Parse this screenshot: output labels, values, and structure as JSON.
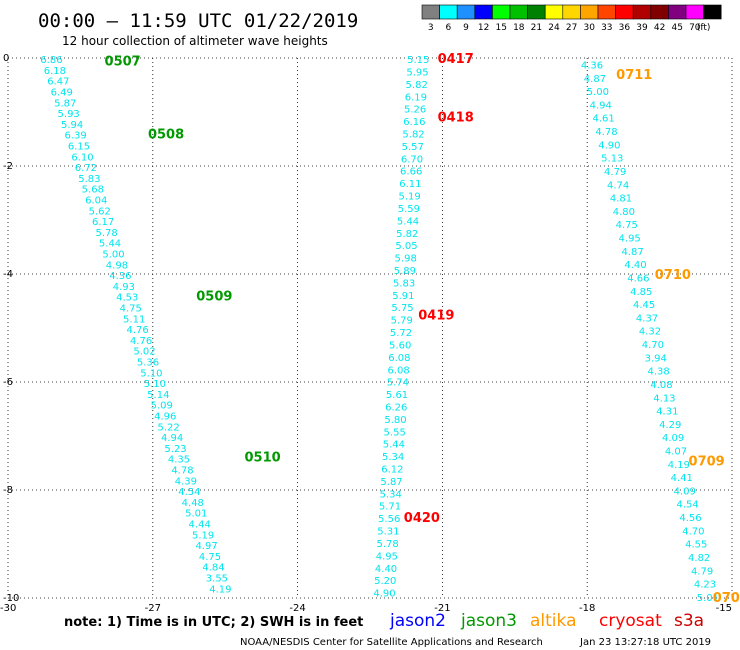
{
  "header": {
    "title": "00:00 – 11:59 UTC 01/22/2019",
    "subtitle": "12 hour collection of altimeter wave heights"
  },
  "colorbar": {
    "unit_label": "(ft)",
    "bins": [
      {
        "label": "3",
        "color": "#808080"
      },
      {
        "label": "6",
        "color": "#00ffff"
      },
      {
        "label": "9",
        "color": "#1e90ff"
      },
      {
        "label": "12",
        "color": "#0000ff"
      },
      {
        "label": "15",
        "color": "#00ff00"
      },
      {
        "label": "18",
        "color": "#00c000"
      },
      {
        "label": "21",
        "color": "#008000"
      },
      {
        "label": "24",
        "color": "#ffff00"
      },
      {
        "label": "27",
        "color": "#ffd700"
      },
      {
        "label": "30",
        "color": "#ffa500"
      },
      {
        "label": "33",
        "color": "#ff4500"
      },
      {
        "label": "36",
        "color": "#ff0000"
      },
      {
        "label": "39",
        "color": "#b00000"
      },
      {
        "label": "42",
        "color": "#800000"
      },
      {
        "label": "45",
        "color": "#800080"
      },
      {
        "label": "70",
        "color": "#ff00ff"
      },
      {
        "label": "",
        "color": "#000000"
      }
    ]
  },
  "footer": {
    "note": "note: 1) Time is in UTC; 2) SWH is in feet",
    "credit": "NOAA/NESDIS Center for Satellite Applications and Research",
    "timestamp": "Jan 23 13:27:18 UTC 2019",
    "satellites": [
      {
        "name": "jason2",
        "color": "#0000ff"
      },
      {
        "name": "jason3",
        "color": "#009900"
      },
      {
        "name": "altika",
        "color": "#ff9900"
      },
      {
        "name": "cryosat",
        "color": "#ff0000"
      },
      {
        "name": "s3a",
        "color": "#cc0000"
      }
    ]
  },
  "chart_data": {
    "type": "scatter",
    "xlim": [
      -30,
      -15
    ],
    "ylim": [
      -10,
      0
    ],
    "x_ticks": [
      -30,
      -27,
      -24,
      -21,
      -18,
      -15
    ],
    "y_ticks": [
      0,
      -2,
      -4,
      -6,
      -8,
      -10
    ],
    "grid": true,
    "value_color": "#00e5ee",
    "tracks": [
      {
        "start": [
          -29.1,
          -0.02
        ],
        "end": [
          -25.6,
          -9.82
        ],
        "values": [
          "6.86",
          "6.18",
          "6.47",
          "6.49",
          "5.87",
          "5.93",
          "5.94",
          "6.39",
          "6.15",
          "6.10",
          "6.72",
          "5.83",
          "5.68",
          "6.04",
          "5.62",
          "6.17",
          "5.78",
          "5.44",
          "5.00",
          "4.98",
          "4.36",
          "4.93",
          "4.53",
          "4.75",
          "5.11",
          "4.76",
          "4.76",
          "5.02",
          "5.36",
          "5.10",
          "5.10",
          "5.14",
          "5.09",
          "4.96",
          "5.22",
          "4.94",
          "5.23",
          "4.35",
          "4.78",
          "4.39",
          "4.54",
          "4.48",
          "5.01",
          "4.44",
          "5.19",
          "4.97",
          "4.75",
          "4.84",
          "3.55",
          "4.19"
        ],
        "time_labels": [
          {
            "text": "0507",
            "x": -28.0,
            "y": -0.05,
            "color": "#009900"
          },
          {
            "text": "0508",
            "x": -27.1,
            "y": -1.4,
            "color": "#009900"
          },
          {
            "text": "0509",
            "x": -26.1,
            "y": -4.4,
            "color": "#009900"
          },
          {
            "text": "0510",
            "x": -25.1,
            "y": -7.38,
            "color": "#009900"
          }
        ]
      },
      {
        "start": [
          -21.5,
          -0.02
        ],
        "end": [
          -22.2,
          -9.9
        ],
        "values": [
          "5.15",
          "5.95",
          "5.82",
          "6.19",
          "5.26",
          "6.16",
          "5.82",
          "5.57",
          "6.70",
          "6.66",
          "6.11",
          "5.19",
          "5.59",
          "5.44",
          "5.82",
          "5.05",
          "5.98",
          "5.89",
          "5.83",
          "5.91",
          "5.75",
          "5.79",
          "5.72",
          "5.60",
          "6.08",
          "6.08",
          "5.74",
          "5.61",
          "6.26",
          "5.80",
          "5.55",
          "5.44",
          "5.34",
          "6.12",
          "5.87",
          "5.34",
          "5.71",
          "5.56",
          "5.31",
          "5.78",
          "4.95",
          "4.40",
          "5.20",
          "4.90"
        ],
        "time_labels": [
          {
            "text": "0417",
            "x": -21.1,
            "y": 0.0,
            "color": "#ff0000"
          },
          {
            "text": "0418",
            "x": -21.1,
            "y": -1.08,
            "color": "#ff0000"
          },
          {
            "text": "0419",
            "x": -21.5,
            "y": -4.75,
            "color": "#ff0000"
          },
          {
            "text": "0420",
            "x": -21.8,
            "y": -8.5,
            "color": "#ff0000"
          }
        ]
      },
      {
        "start": [
          -17.9,
          -0.12
        ],
        "end": [
          -15.5,
          -9.98
        ],
        "values": [
          "4.36",
          "4.87",
          "5.00",
          "4.94",
          "4.61",
          "4.78",
          "4.90",
          "5.13",
          "4.79",
          "4.74",
          "4.81",
          "4.80",
          "4.75",
          "4.95",
          "4.87",
          "4.40",
          "4.66",
          "4.85",
          "4.45",
          "4.37",
          "4.32",
          "4.70",
          "3.94",
          "4.38",
          "4.08",
          "4.13",
          "4.31",
          "4.29",
          "4.09",
          "4.07",
          "4.19",
          "4.41",
          "4.09",
          "4.54",
          "4.56",
          "4.70",
          "4.55",
          "4.82",
          "4.79",
          "4.23",
          "5.01"
        ],
        "time_labels": [
          {
            "text": "0711",
            "x": -17.4,
            "y": -0.3,
            "color": "#ff9900"
          },
          {
            "text": "0710",
            "x": -16.6,
            "y": -4.0,
            "color": "#ff9900"
          },
          {
            "text": "0709",
            "x": -15.9,
            "y": -7.45,
            "color": "#ff9900"
          },
          {
            "text": "070",
            "x": -15.4,
            "y": -9.98,
            "color": "#ff9900"
          }
        ]
      }
    ]
  }
}
